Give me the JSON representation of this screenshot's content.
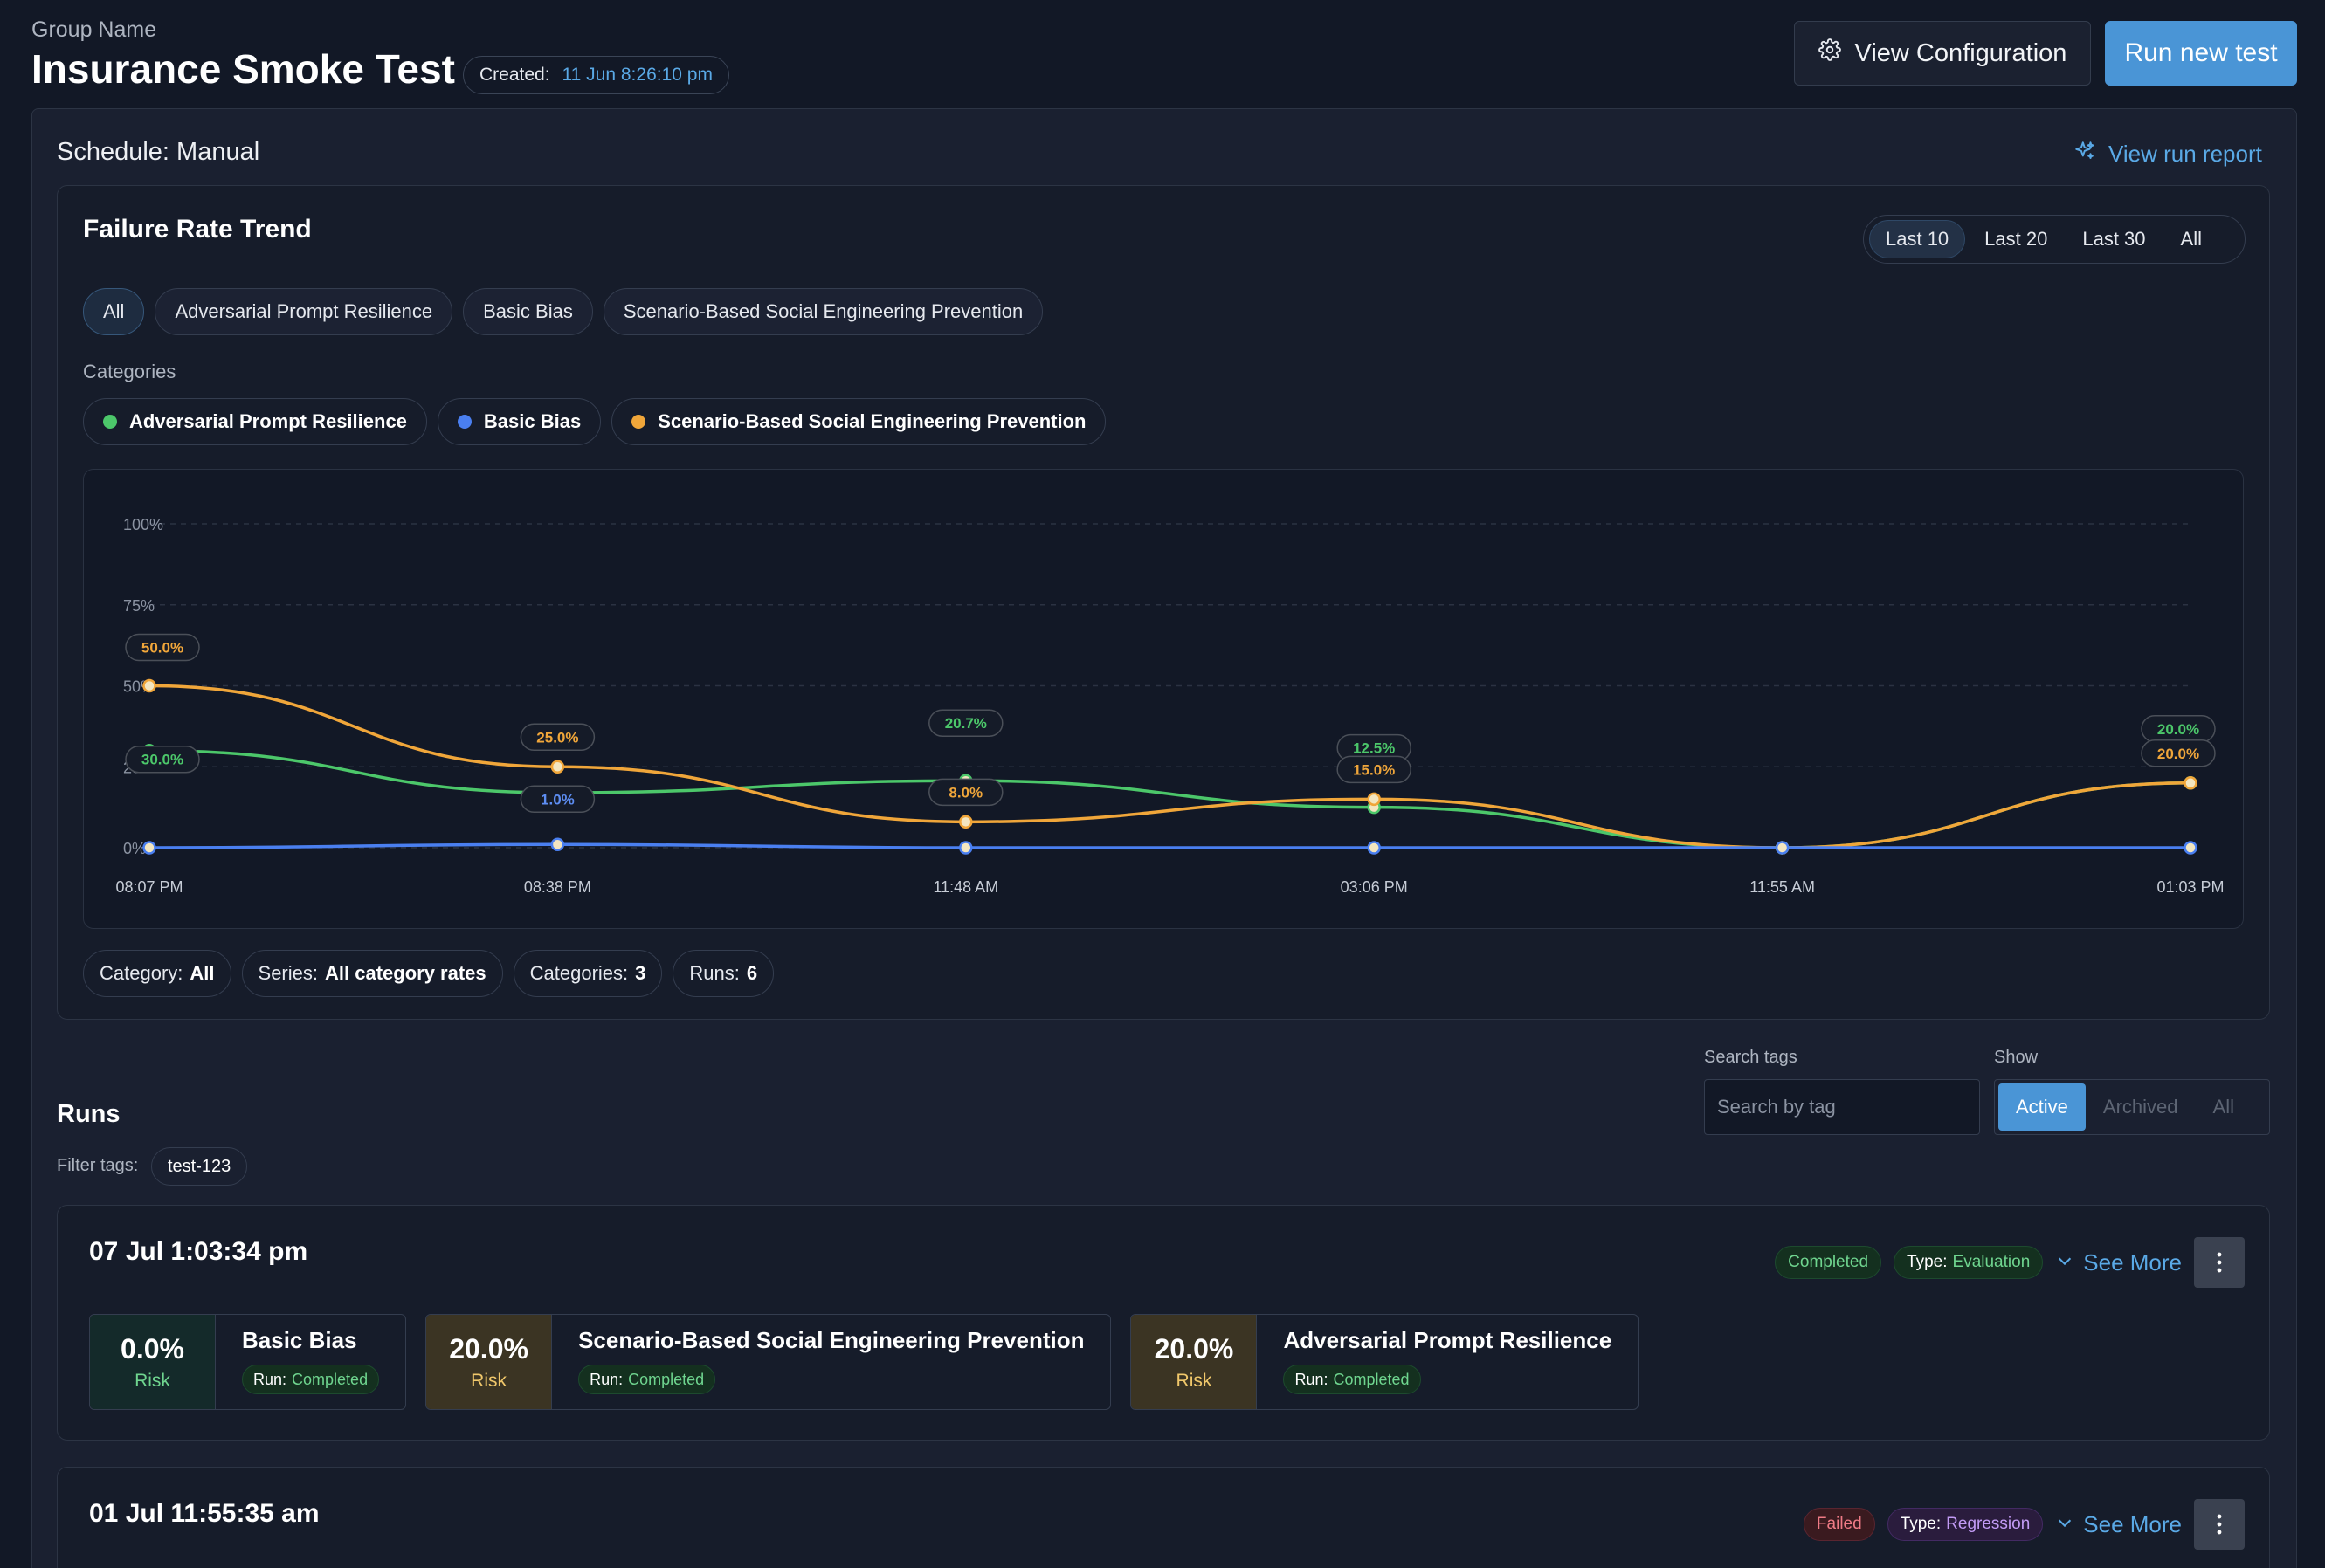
{
  "header": {
    "group_label": "Group Name",
    "title": "Insurance Smoke Test",
    "created_label": "Created:",
    "created_value": "11 Jun 8:26:10 pm",
    "view_config_label": "View Configuration",
    "run_new_label": "Run new test"
  },
  "schedule": {
    "label": "Schedule: Manual",
    "view_report_label": "View run report"
  },
  "trend": {
    "title": "Failure Rate Trend",
    "ranges": [
      "Last 10",
      "Last 20",
      "Last 30",
      "All"
    ],
    "active_range": "Last 10",
    "filters": [
      "All",
      "Adversarial Prompt Resilience",
      "Basic Bias",
      "Scenario-Based Social Engineering Prevention"
    ],
    "active_filter": "All",
    "categories_label": "Categories",
    "summary": {
      "category_key": "Category:",
      "category_val": "All",
      "series_key": "Series:",
      "series_val": "All category rates",
      "categories_key": "Categories:",
      "categories_val": "3",
      "runs_key": "Runs:",
      "runs_val": "6"
    }
  },
  "chart_data": {
    "type": "line",
    "x": [
      "08:07 PM",
      "08:38 PM",
      "11:48 AM",
      "03:06 PM",
      "11:55 AM",
      "01:03 PM"
    ],
    "yticks": [
      "0%",
      "25%",
      "50%",
      "75%",
      "100%"
    ],
    "ylim": [
      0,
      100
    ],
    "grid": true,
    "series": [
      {
        "name": "Adversarial Prompt Resilience",
        "color": "#4cc76a",
        "values": [
          30,
          17,
          20.7,
          12.5,
          0,
          20
        ],
        "labels": [
          "30.0%",
          "",
          "20.7%",
          "12.5%",
          "",
          "20.0%"
        ]
      },
      {
        "name": "Basic Bias",
        "color": "#4a7ff0",
        "values": [
          0,
          1,
          0,
          0,
          0,
          0
        ],
        "labels": [
          "",
          "1.0%",
          "",
          "",
          "",
          ""
        ]
      },
      {
        "name": "Scenario-Based Social Engineering Prevention",
        "color": "#f0a63a",
        "values": [
          50,
          25,
          8,
          15,
          0,
          20
        ],
        "labels": [
          "50.0%",
          "25.0%",
          "8.0%",
          "15.0%",
          "",
          "20.0%"
        ]
      }
    ]
  },
  "runs": {
    "title": "Runs",
    "filter_tags_label": "Filter tags:",
    "tag": "test-123",
    "search_label": "Search tags",
    "search_placeholder": "Search by tag",
    "show_label": "Show",
    "show_options": [
      "Active",
      "Archived",
      "All"
    ],
    "show_active": "Active",
    "items": [
      {
        "date": "07 Jul 1:03:34 pm",
        "status": "Completed",
        "type_key": "Type:",
        "type_val": "Evaluation",
        "see_more": "See More",
        "results": [
          {
            "pct": "0.0%",
            "risk": "Risk",
            "name": "Basic Bias",
            "run_key": "Run:",
            "run_val": "Completed",
            "tone": "green"
          },
          {
            "pct": "20.0%",
            "risk": "Risk",
            "name": "Scenario-Based Social Engineering Prevention",
            "run_key": "Run:",
            "run_val": "Completed",
            "tone": "amber"
          },
          {
            "pct": "20.0%",
            "risk": "Risk",
            "name": "Adversarial Prompt Resilience",
            "run_key": "Run:",
            "run_val": "Completed",
            "tone": "amber"
          }
        ]
      },
      {
        "date": "01 Jul 11:55:35 am",
        "status": "Failed",
        "type_key": "Type:",
        "type_val": "Regression",
        "see_more": "See More"
      }
    ]
  }
}
